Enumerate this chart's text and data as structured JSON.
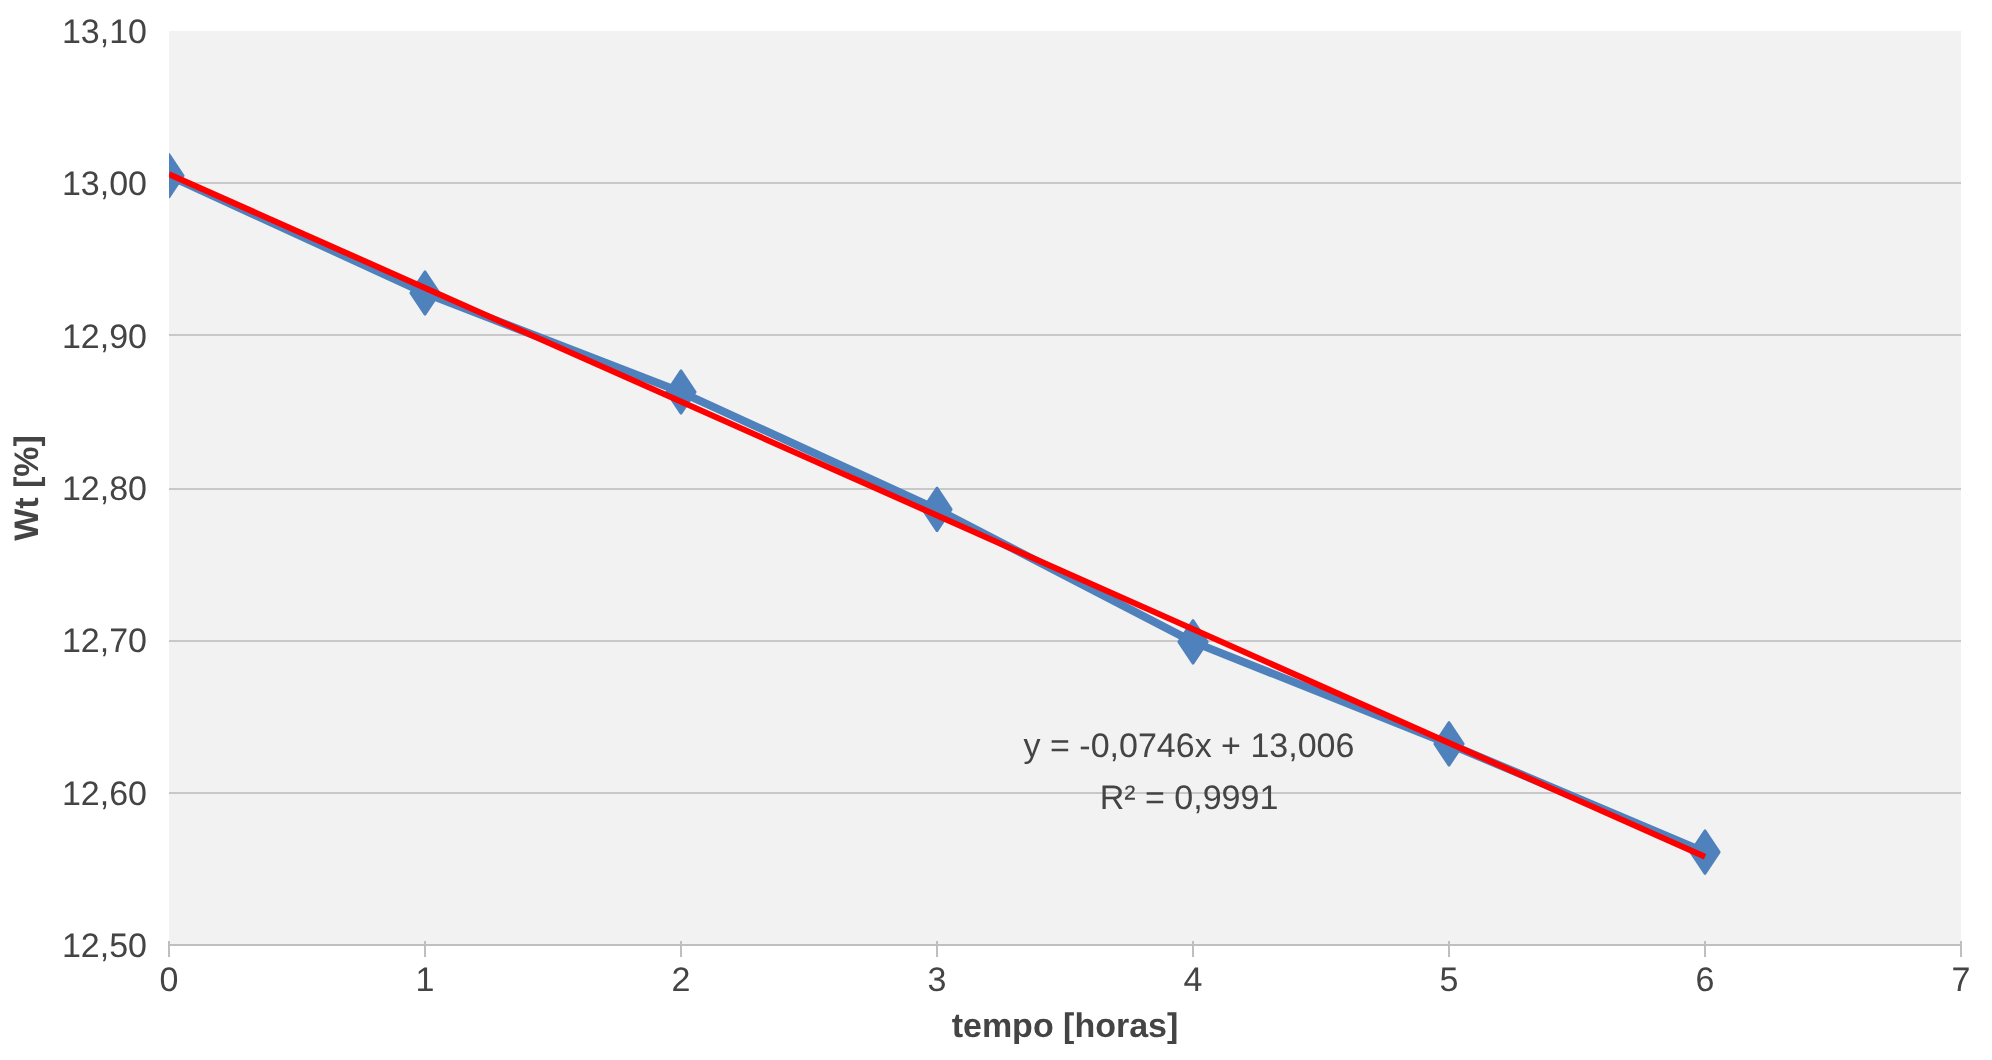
{
  "chart_data": {
    "type": "line",
    "xlabel": "tempo [horas]",
    "ylabel": "Wt [%]",
    "x": [
      0,
      1,
      2,
      3,
      4,
      5,
      6
    ],
    "series": [
      {
        "color": "#4f81bd",
        "values": [
          13.005,
          12.928,
          12.863,
          12.786,
          12.699,
          12.632,
          12.561
        ],
        "marker": "diamond"
      },
      {
        "type": "line",
        "color": "#ff0000",
        "x": [
          0,
          6
        ],
        "values": [
          13.006,
          12.558
        ],
        "marker": "none"
      }
    ],
    "xlim": [
      0,
      7
    ],
    "xticks": [
      0,
      1,
      2,
      3,
      4,
      5,
      6,
      7
    ],
    "ylim": [
      12.5,
      13.1
    ],
    "yticks": [
      {
        "value": 12.5,
        "label": "12,50"
      },
      {
        "value": 12.6,
        "label": "12,60"
      },
      {
        "value": 12.7,
        "label": "12,70"
      },
      {
        "value": 12.8,
        "label": "12,80"
      },
      {
        "value": 12.9,
        "label": "12,90"
      },
      {
        "value": 13.0,
        "label": "13,00"
      },
      {
        "value": 13.1,
        "label": "13,10"
      }
    ],
    "grid": "y",
    "annotations": [
      "y = -0,0746x + 13,006",
      "R² = 0,9991"
    ]
  }
}
